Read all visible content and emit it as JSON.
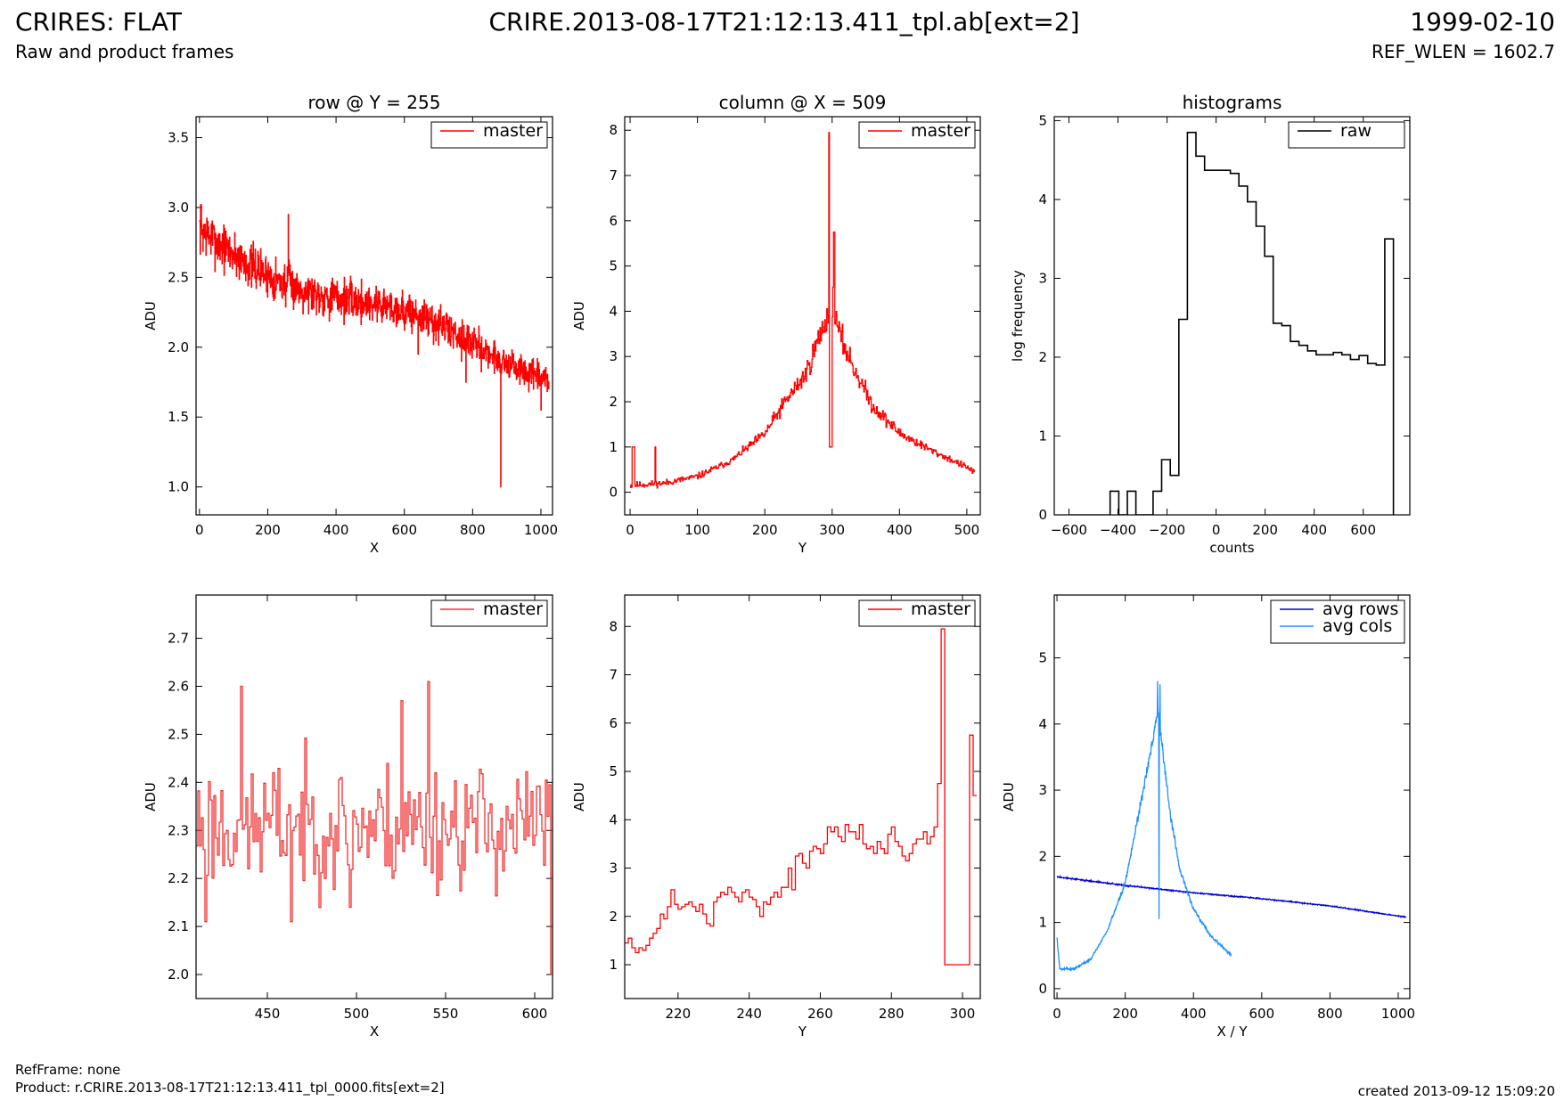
{
  "header": {
    "title": "CRIRES: FLAT",
    "subtitle": "Raw and product frames",
    "center_title": "CRIRE.2013-08-17T21:12:13.411_tpl.ab[ext=2]",
    "date": "1999-02-10",
    "ref_wlen": "REF_WLEN = 1602.7"
  },
  "footer": {
    "ref_frame": "RefFrame: none",
    "product": "Product: r.CRIRE.2013-08-17T21:12:13.411_tpl_0000.fits[ext=2]",
    "created": "created 2013-09-12 15:09:20"
  },
  "colors": {
    "red": "#ff0000",
    "red_zoom": "#f03030",
    "black": "#000000",
    "blue": "#0000dd",
    "light_blue": "#1e90ff"
  },
  "chart_data": [
    {
      "id": "row",
      "type": "line",
      "title": "row @ Y = 255",
      "xlabel": "X",
      "ylabel": "ADU",
      "xlim": [
        -10,
        1034
      ],
      "ylim": [
        0.8,
        3.65
      ],
      "xticks": [
        0,
        200,
        400,
        600,
        800,
        1000
      ],
      "yticks": [
        1.0,
        1.5,
        2.0,
        2.5,
        3.0,
        3.5
      ],
      "ytick_format": 1,
      "legend": "top-right",
      "series": [
        {
          "name": "master",
          "color": "#ff0000",
          "step": true,
          "trend": [
            [
              0,
              2.85
            ],
            [
              50,
              2.75
            ],
            [
              150,
              2.58
            ],
            [
              250,
              2.45
            ],
            [
              350,
              2.38
            ],
            [
              450,
              2.33
            ],
            [
              550,
              2.3
            ],
            [
              650,
              2.22
            ],
            [
              750,
              2.1
            ],
            [
              850,
              1.95
            ],
            [
              950,
              1.82
            ],
            [
              1023,
              1.75
            ]
          ],
          "noise": 0.12,
          "n": 1024,
          "seed": 7,
          "spikes": [
            [
              882,
              1.0
            ],
            [
              5,
              3.02
            ],
            [
              260,
              2.95
            ],
            [
              640,
              1.95
            ],
            [
              780,
              1.75
            ],
            [
              1000,
              1.55
            ]
          ]
        }
      ]
    },
    {
      "id": "column",
      "type": "line",
      "title": "column @ X = 509",
      "xlabel": "Y",
      "ylabel": "ADU",
      "xlim": [
        -8,
        520
      ],
      "ylim": [
        -0.5,
        8.3
      ],
      "xticks": [
        0,
        100,
        200,
        300,
        400,
        500
      ],
      "yticks": [
        0,
        1,
        2,
        3,
        4,
        5,
        6,
        7,
        8
      ],
      "ytick_format": 0,
      "legend": "top-right",
      "series": [
        {
          "name": "master",
          "color": "#ff0000",
          "step": true,
          "trend": [
            [
              0,
              0.15
            ],
            [
              50,
              0.2
            ],
            [
              100,
              0.35
            ],
            [
              150,
              0.7
            ],
            [
              200,
              1.3
            ],
            [
              230,
              2.0
            ],
            [
              260,
              2.6
            ],
            [
              280,
              3.4
            ],
            [
              293,
              3.9
            ],
            [
              300,
              4.3
            ],
            [
              310,
              3.5
            ],
            [
              330,
              2.8
            ],
            [
              360,
              1.9
            ],
            [
              400,
              1.3
            ],
            [
              450,
              0.9
            ],
            [
              500,
              0.55
            ],
            [
              511,
              0.45
            ]
          ],
          "noise": 0.18,
          "n": 512,
          "seed": 11,
          "spikes": [
            [
              3,
              1.0
            ],
            [
              4,
              1.0
            ],
            [
              5,
              1.0
            ],
            [
              6,
              1.0
            ],
            [
              37,
              1.0
            ],
            [
              296,
              1.0
            ],
            [
              297,
              1.0
            ],
            [
              298,
              1.0
            ],
            [
              299,
              1.0
            ],
            [
              295,
              7.95
            ],
            [
              302,
              5.75
            ],
            [
              303,
              5.75
            ]
          ]
        }
      ]
    },
    {
      "id": "histograms",
      "type": "bar",
      "title": "histograms",
      "xlabel": "counts",
      "ylabel": "log frequency",
      "xlim": [
        -660,
        790
      ],
      "ylim": [
        0,
        5.05
      ],
      "xticks": [
        -600,
        -400,
        -200,
        0,
        200,
        400,
        600
      ],
      "yticks": [
        0,
        1,
        2,
        3,
        4,
        5
      ],
      "ytick_format": 0,
      "legend": "top-right",
      "series": [
        {
          "name": "raw",
          "color": "#000000",
          "bin_start": -432,
          "bin_width": 35,
          "values": [
            0.3,
            0,
            0.3,
            0,
            0,
            0.3,
            0.7,
            0.5,
            2.48,
            4.85,
            4.55,
            4.37,
            4.37,
            4.37,
            4.33,
            4.17,
            3.97,
            3.66,
            3.28,
            2.43,
            2.4,
            2.2,
            2.15,
            2.08,
            2.03,
            2.03,
            2.06,
            2.03,
            1.97,
            2.02,
            1.92,
            1.9,
            3.5
          ]
        }
      ]
    },
    {
      "id": "row_zoom",
      "type": "line",
      "title": "",
      "xlabel": "X",
      "ylabel": "ADU",
      "xlim": [
        410,
        610
      ],
      "ylim": [
        1.95,
        2.79
      ],
      "xticks": [
        450,
        500,
        550,
        600
      ],
      "yticks": [
        2.0,
        2.1,
        2.2,
        2.3,
        2.4,
        2.5,
        2.6,
        2.7
      ],
      "ytick_format": 1,
      "legend": "top-right",
      "series": [
        {
          "name": "master",
          "color": "#f03030",
          "step": true,
          "trend": [
            [
              410,
              2.31
            ],
            [
              610,
              2.31
            ]
          ],
          "noise": 0.11,
          "n": 201,
          "x0": 410,
          "seed": 23,
          "spikes": [
            [
              435,
              2.6
            ],
            [
              540,
              2.61
            ],
            [
              415,
              2.11
            ],
            [
              463,
              2.11
            ],
            [
              609,
              2.0
            ],
            [
              496,
              2.14
            ],
            [
              525,
              2.57
            ]
          ]
        }
      ]
    },
    {
      "id": "column_zoom",
      "type": "line",
      "title": "",
      "xlabel": "Y",
      "ylabel": "ADU",
      "xlim": [
        205,
        305
      ],
      "ylim": [
        0.3,
        8.65
      ],
      "xticks": [
        220,
        240,
        260,
        280,
        300
      ],
      "yticks": [
        1,
        2,
        3,
        4,
        5,
        6,
        7,
        8
      ],
      "ytick_format": 0,
      "legend": "top-right",
      "series": [
        {
          "name": "master",
          "color": "#ff0000",
          "step": true,
          "points": [
            [
              205,
              1.45
            ],
            [
              206,
              1.55
            ],
            [
              207,
              1.35
            ],
            [
              208,
              1.25
            ],
            [
              209,
              1.35
            ],
            [
              210,
              1.3
            ],
            [
              211,
              1.4
            ],
            [
              212,
              1.55
            ],
            [
              213,
              1.65
            ],
            [
              214,
              1.75
            ],
            [
              215,
              2.05
            ],
            [
              216,
              1.95
            ],
            [
              217,
              2.2
            ],
            [
              218,
              2.55
            ],
            [
              219,
              2.25
            ],
            [
              220,
              2.15
            ],
            [
              221,
              2.2
            ],
            [
              222,
              2.25
            ],
            [
              223,
              2.3
            ],
            [
              224,
              2.2
            ],
            [
              225,
              2.1
            ],
            [
              226,
              2.25
            ],
            [
              227,
              2.05
            ],
            [
              228,
              1.85
            ],
            [
              229,
              1.8
            ],
            [
              230,
              2.3
            ],
            [
              231,
              2.4
            ],
            [
              232,
              2.5
            ],
            [
              233,
              2.45
            ],
            [
              234,
              2.6
            ],
            [
              235,
              2.5
            ],
            [
              236,
              2.4
            ],
            [
              237,
              2.3
            ],
            [
              238,
              2.5
            ],
            [
              239,
              2.55
            ],
            [
              240,
              2.4
            ],
            [
              241,
              2.35
            ],
            [
              242,
              2.2
            ],
            [
              243,
              2.0
            ],
            [
              244,
              2.3
            ],
            [
              245,
              2.25
            ],
            [
              246,
              2.4
            ],
            [
              247,
              2.5
            ],
            [
              248,
              2.4
            ],
            [
              249,
              2.6
            ],
            [
              250,
              2.6
            ],
            [
              251,
              3.0
            ],
            [
              252,
              2.55
            ],
            [
              253,
              3.25
            ],
            [
              254,
              3.3
            ],
            [
              255,
              3.1
            ],
            [
              256,
              3.0
            ],
            [
              257,
              3.35
            ],
            [
              258,
              3.45
            ],
            [
              259,
              3.4
            ],
            [
              260,
              3.3
            ],
            [
              261,
              3.5
            ],
            [
              262,
              3.85
            ],
            [
              263,
              3.75
            ],
            [
              264,
              3.85
            ],
            [
              265,
              3.65
            ],
            [
              266,
              3.55
            ],
            [
              267,
              3.9
            ],
            [
              268,
              3.75
            ],
            [
              269,
              3.75
            ],
            [
              270,
              3.6
            ],
            [
              271,
              3.9
            ],
            [
              272,
              3.5
            ],
            [
              273,
              3.4
            ],
            [
              274,
              3.45
            ],
            [
              275,
              3.3
            ],
            [
              276,
              3.55
            ],
            [
              277,
              3.4
            ],
            [
              278,
              3.3
            ],
            [
              279,
              3.7
            ],
            [
              280,
              3.85
            ],
            [
              281,
              3.55
            ],
            [
              282,
              3.45
            ],
            [
              283,
              3.25
            ],
            [
              284,
              3.15
            ],
            [
              285,
              3.3
            ],
            [
              286,
              3.5
            ],
            [
              287,
              3.6
            ],
            [
              288,
              3.6
            ],
            [
              289,
              3.75
            ],
            [
              290,
              3.5
            ],
            [
              291,
              3.65
            ],
            [
              292,
              3.85
            ],
            [
              293,
              4.75
            ],
            [
              294,
              7.95
            ],
            [
              295,
              1.0
            ],
            [
              296,
              1.0
            ],
            [
              297,
              1.0
            ],
            [
              298,
              1.0
            ],
            [
              299,
              1.0
            ],
            [
              300,
              1.0
            ],
            [
              301,
              1.0
            ],
            [
              302,
              5.75
            ],
            [
              303,
              4.5
            ],
            [
              304,
              4.5
            ]
          ]
        }
      ]
    },
    {
      "id": "averages",
      "type": "line",
      "title": "",
      "xlabel": "X / Y",
      "ylabel": "ADU",
      "xlim": [
        -8,
        1034
      ],
      "ylim": [
        -0.15,
        5.95
      ],
      "xticks": [
        0,
        200,
        400,
        600,
        800,
        1000
      ],
      "yticks": [
        0,
        1,
        2,
        3,
        4,
        5
      ],
      "ytick_format": 0,
      "legend": "top-right",
      "series": [
        {
          "name": "avg rows",
          "color": "#0000dd",
          "step": false,
          "trend": [
            [
              0,
              1.69
            ],
            [
              200,
              1.56
            ],
            [
              400,
              1.45
            ],
            [
              600,
              1.36
            ],
            [
              800,
              1.25
            ],
            [
              1023,
              1.08
            ]
          ],
          "noise": 0.012,
          "n": 1024,
          "seed": 3
        },
        {
          "name": "avg cols",
          "color": "#1e90ff",
          "step": false,
          "trend": [
            [
              0,
              0.78
            ],
            [
              8,
              0.3
            ],
            [
              50,
              0.3
            ],
            [
              100,
              0.45
            ],
            [
              150,
              0.9
            ],
            [
              200,
              1.6
            ],
            [
              230,
              2.4
            ],
            [
              260,
              3.2
            ],
            [
              280,
              3.7
            ],
            [
              295,
              4.2
            ],
            [
              310,
              3.6
            ],
            [
              330,
              2.7
            ],
            [
              360,
              1.8
            ],
            [
              400,
              1.2
            ],
            [
              450,
              0.8
            ],
            [
              511,
              0.5
            ]
          ],
          "noise": 0.05,
          "n": 512,
          "seed": 5,
          "spikes": [
            [
              295,
              4.65
            ],
            [
              299,
              1.05
            ],
            [
              302,
              4.6
            ]
          ]
        }
      ]
    }
  ]
}
